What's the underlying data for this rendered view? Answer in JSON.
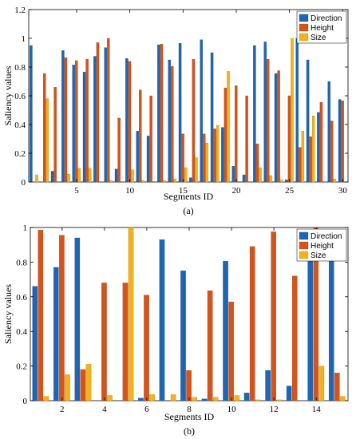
{
  "series_colors": [
    "#1f66b2",
    "#d4541c",
    "#f2b11f"
  ],
  "chart_data": [
    {
      "type": "bar",
      "caption": "(a)",
      "xlabel": "Segments ID",
      "ylabel": "Saliency values",
      "xlim": [
        0.5,
        30.5
      ],
      "ylim": [
        0,
        1.2
      ],
      "yticks": [
        0,
        0.2,
        0.4,
        0.6,
        0.8,
        1,
        1.2
      ],
      "xticks": [
        5,
        10,
        15,
        20,
        25,
        30
      ],
      "x": [
        1,
        2,
        3,
        4,
        5,
        6,
        7,
        8,
        9,
        10,
        11,
        12,
        13,
        14,
        15,
        16,
        17,
        18,
        19,
        20,
        21,
        22,
        23,
        24,
        25,
        26,
        27,
        28,
        29,
        30
      ],
      "legend_position": "top-right",
      "series": [
        {
          "name": "Direction",
          "values": [
            0.95,
            0.0,
            0.075,
            0.915,
            0.815,
            0.765,
            0.875,
            0.935,
            0.09,
            0.86,
            0.355,
            0.32,
            0.955,
            0.85,
            0.965,
            0.03,
            0.99,
            0.9,
            0.38,
            0.11,
            0.05,
            0.95,
            0.975,
            0.755,
            0.015,
            1.0,
            0.85,
            0.485,
            0.7,
            0.575
          ]
        },
        {
          "name": "Height",
          "values": [
            0.0,
            0.755,
            0.66,
            0.865,
            0.845,
            0.855,
            0.97,
            1.0,
            0.445,
            0.84,
            0.64,
            0.6,
            0.96,
            0.805,
            0.335,
            0.855,
            0.335,
            0.37,
            0.655,
            0.67,
            0.6,
            0.265,
            0.855,
            0.775,
            0.6,
            0.24,
            0.315,
            0.555,
            0.425,
            0.565
          ]
        },
        {
          "name": "Size",
          "values": [
            0.05,
            0.58,
            0.0,
            0.055,
            0.095,
            0.095,
            0.0,
            0.01,
            0.0,
            0.085,
            0.01,
            0.0,
            0.01,
            0.02,
            0.1,
            0.17,
            0.27,
            0.395,
            0.77,
            0.0,
            0.0,
            0.1,
            0.045,
            0.015,
            1.0,
            0.355,
            0.46,
            0.0,
            0.02,
            0.0
          ]
        }
      ]
    },
    {
      "type": "bar",
      "caption": "(b)",
      "xlabel": "Segments ID",
      "ylabel": "Saliency values",
      "xlim": [
        0.5,
        15.5
      ],
      "ylim": [
        0,
        1
      ],
      "yticks": [
        0,
        0.2,
        0.4,
        0.6,
        0.8,
        1
      ],
      "xticks": [
        2,
        4,
        6,
        8,
        10,
        12,
        14
      ],
      "x": [
        1,
        2,
        3,
        4,
        5,
        6,
        7,
        8,
        9,
        10,
        11,
        12,
        13,
        14,
        15
      ],
      "legend_position": "top-right",
      "series": [
        {
          "name": "Direction",
          "values": [
            0.66,
            0.77,
            0.94,
            0.0,
            0.0,
            0.015,
            0.93,
            0.75,
            0.01,
            0.805,
            0.045,
            0.175,
            0.085,
            0.83,
            0.955
          ]
        },
        {
          "name": "Height",
          "values": [
            0.985,
            0.955,
            0.18,
            0.68,
            0.68,
            0.61,
            0.0,
            0.175,
            0.635,
            0.57,
            0.89,
            0.975,
            0.72,
            1.0,
            0.16
          ]
        },
        {
          "name": "Size",
          "values": [
            0.025,
            0.15,
            0.21,
            0.03,
            1.0,
            0.035,
            0.035,
            0.02,
            0.02,
            0.03,
            0.005,
            0.005,
            0.0,
            0.2,
            0.025
          ]
        }
      ]
    }
  ]
}
